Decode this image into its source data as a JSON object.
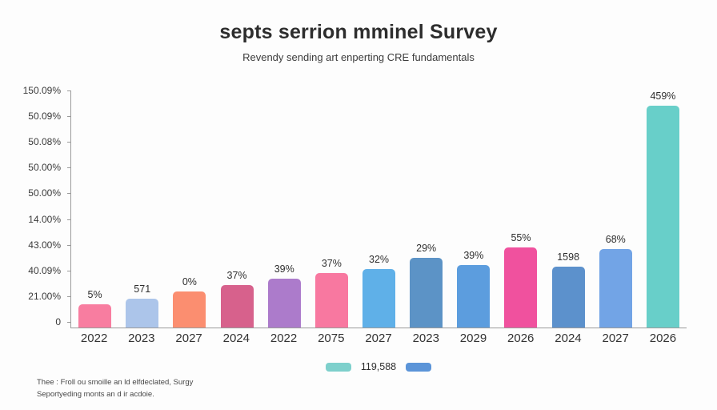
{
  "header": {
    "title": "septs serrion mminel Survey",
    "subtitle": "Revendy sending art enperting CRE fundamentals"
  },
  "chart_data": {
    "type": "bar",
    "title": "septs serrion mminel Survey",
    "subtitle": "Revendy sending art enperting CRE fundamentals",
    "y_axis_labels": [
      "150.09%",
      "50.09%",
      "50.08%",
      "50.00%",
      "50.00%",
      "14.00%",
      "43.00%",
      "40.09%",
      "21.00%",
      "0"
    ],
    "categories": [
      "2022",
      "2023",
      "2027",
      "2024",
      "2022",
      "2075",
      "2027",
      "2023",
      "2029",
      "2026",
      "2024",
      "2027",
      "2026"
    ],
    "bars": [
      {
        "category": "2022",
        "label": "5%",
        "height_pct": 9.8,
        "color": "#f87da0"
      },
      {
        "category": "2023",
        "label": "571",
        "height_pct": 12.1,
        "color": "#acc5ea"
      },
      {
        "category": "2027",
        "label": "0%",
        "height_pct": 15.2,
        "color": "#fb8e70"
      },
      {
        "category": "2024",
        "label": "37%",
        "height_pct": 17.8,
        "color": "#d7618c"
      },
      {
        "category": "2022",
        "label": "39%",
        "height_pct": 20.5,
        "color": "#ac7bcb"
      },
      {
        "category": "2075",
        "label": "37%",
        "height_pct": 22.9,
        "color": "#f878a0"
      },
      {
        "category": "2027",
        "label": "32%",
        "height_pct": 24.6,
        "color": "#5fb0e8"
      },
      {
        "category": "2023",
        "label": "29%",
        "height_pct": 29.3,
        "color": "#5c93c6"
      },
      {
        "category": "2029",
        "label": "39%",
        "height_pct": 26.3,
        "color": "#5c9dde"
      },
      {
        "category": "2026",
        "label": "55%",
        "height_pct": 33.7,
        "color": "#f0519e"
      },
      {
        "category": "2024",
        "label": "1598",
        "height_pct": 25.6,
        "color": "#5c91cc"
      },
      {
        "category": "2027",
        "label": "68%",
        "height_pct": 33.0,
        "color": "#72a4e6"
      },
      {
        "category": "2026",
        "label": "459%",
        "height_pct": 94.9,
        "color": "#68cfc9"
      }
    ],
    "ylim_pct_of_plot": [
      0,
      100
    ],
    "grid": false,
    "legend_position": "bottom",
    "axis_color": "#9a9a9a"
  },
  "legend": {
    "label": "119,588",
    "swatch_colors": [
      "#7ed0cc",
      "#5b94d8"
    ]
  },
  "footer": {
    "line1": "Thee : Froll ou smoille an ld elfdeclated, Surgy",
    "line2": "Seportyeding monts an d ir acdoie."
  }
}
